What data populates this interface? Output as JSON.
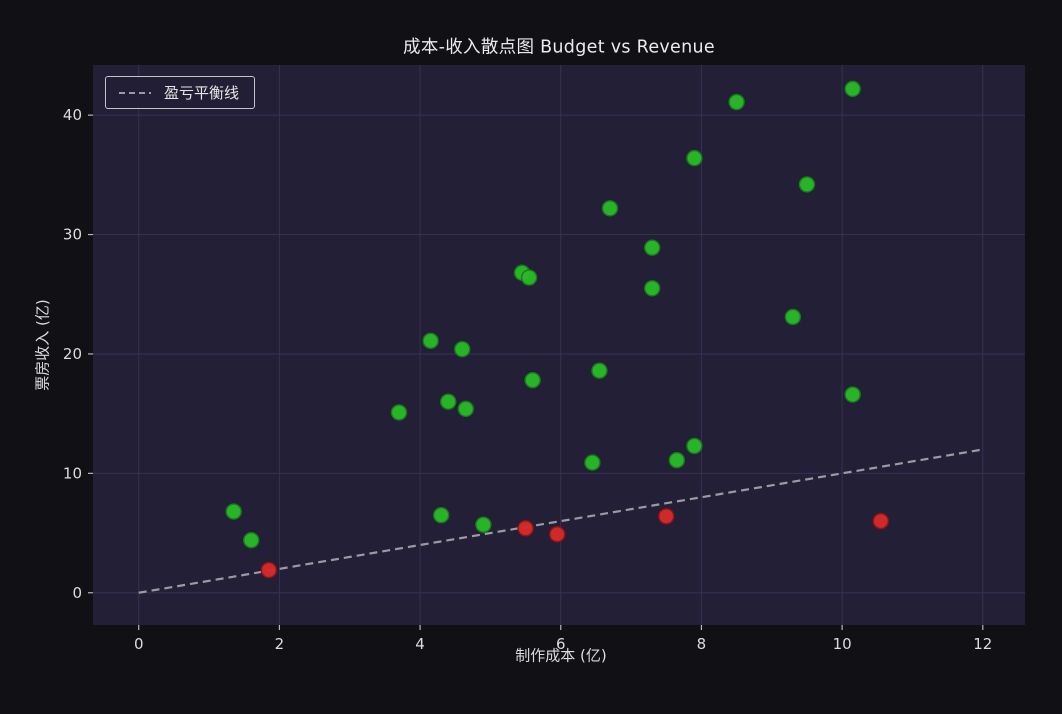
{
  "chart_data": {
    "type": "scatter",
    "title": "成本-收入散点图 Budget vs Revenue",
    "xlabel": "制作成本 (亿)",
    "ylabel": "票房收入 (亿)",
    "xlim": [
      -0.65,
      12.6
    ],
    "ylim": [
      -2.7,
      44.2
    ],
    "xticks": [
      0,
      2,
      4,
      6,
      8,
      10,
      12
    ],
    "yticks": [
      0,
      10,
      20,
      30,
      40
    ],
    "grid": true,
    "legend": {
      "position": "upper-left",
      "entries": [
        {
          "label": "盈亏平衡线",
          "style": "dashed",
          "color": "#9b9ba3"
        }
      ]
    },
    "breakeven_line": {
      "x": [
        0,
        12
      ],
      "y": [
        0,
        12
      ],
      "color": "#9b9ba3",
      "dashed": true
    },
    "series": [
      {
        "name": "profitable-green",
        "color": "#28b828",
        "edge_color": "#1a7a1a",
        "points": [
          [
            1.35,
            6.8
          ],
          [
            1.6,
            4.4
          ],
          [
            3.7,
            15.1
          ],
          [
            4.15,
            21.1
          ],
          [
            4.3,
            6.5
          ],
          [
            4.4,
            16.0
          ],
          [
            4.6,
            20.4
          ],
          [
            4.65,
            15.4
          ],
          [
            4.9,
            5.7
          ],
          [
            5.45,
            26.8
          ],
          [
            5.55,
            26.4
          ],
          [
            5.6,
            17.8
          ],
          [
            6.45,
            10.9
          ],
          [
            6.55,
            18.6
          ],
          [
            6.7,
            32.2
          ],
          [
            7.3,
            28.9
          ],
          [
            7.3,
            25.5
          ],
          [
            7.65,
            11.1
          ],
          [
            7.9,
            36.4
          ],
          [
            7.9,
            12.3
          ],
          [
            8.5,
            41.1
          ],
          [
            9.3,
            23.1
          ],
          [
            9.5,
            34.2
          ],
          [
            10.15,
            42.2
          ],
          [
            10.15,
            16.6
          ]
        ]
      },
      {
        "name": "unprofitable-red",
        "color": "#d42a2a",
        "edge_color": "#8f1414",
        "points": [
          [
            1.85,
            1.9
          ],
          [
            5.5,
            5.4
          ],
          [
            5.95,
            4.9
          ],
          [
            7.5,
            6.4
          ],
          [
            10.55,
            6.0
          ]
        ]
      }
    ],
    "colors": {
      "figure_bg": "#111015",
      "plot_bg": "#231f37",
      "grid": "#363154",
      "tick": "#b5b5bd",
      "text": "#dcdcdc",
      "title": "#ebebeb"
    }
  }
}
